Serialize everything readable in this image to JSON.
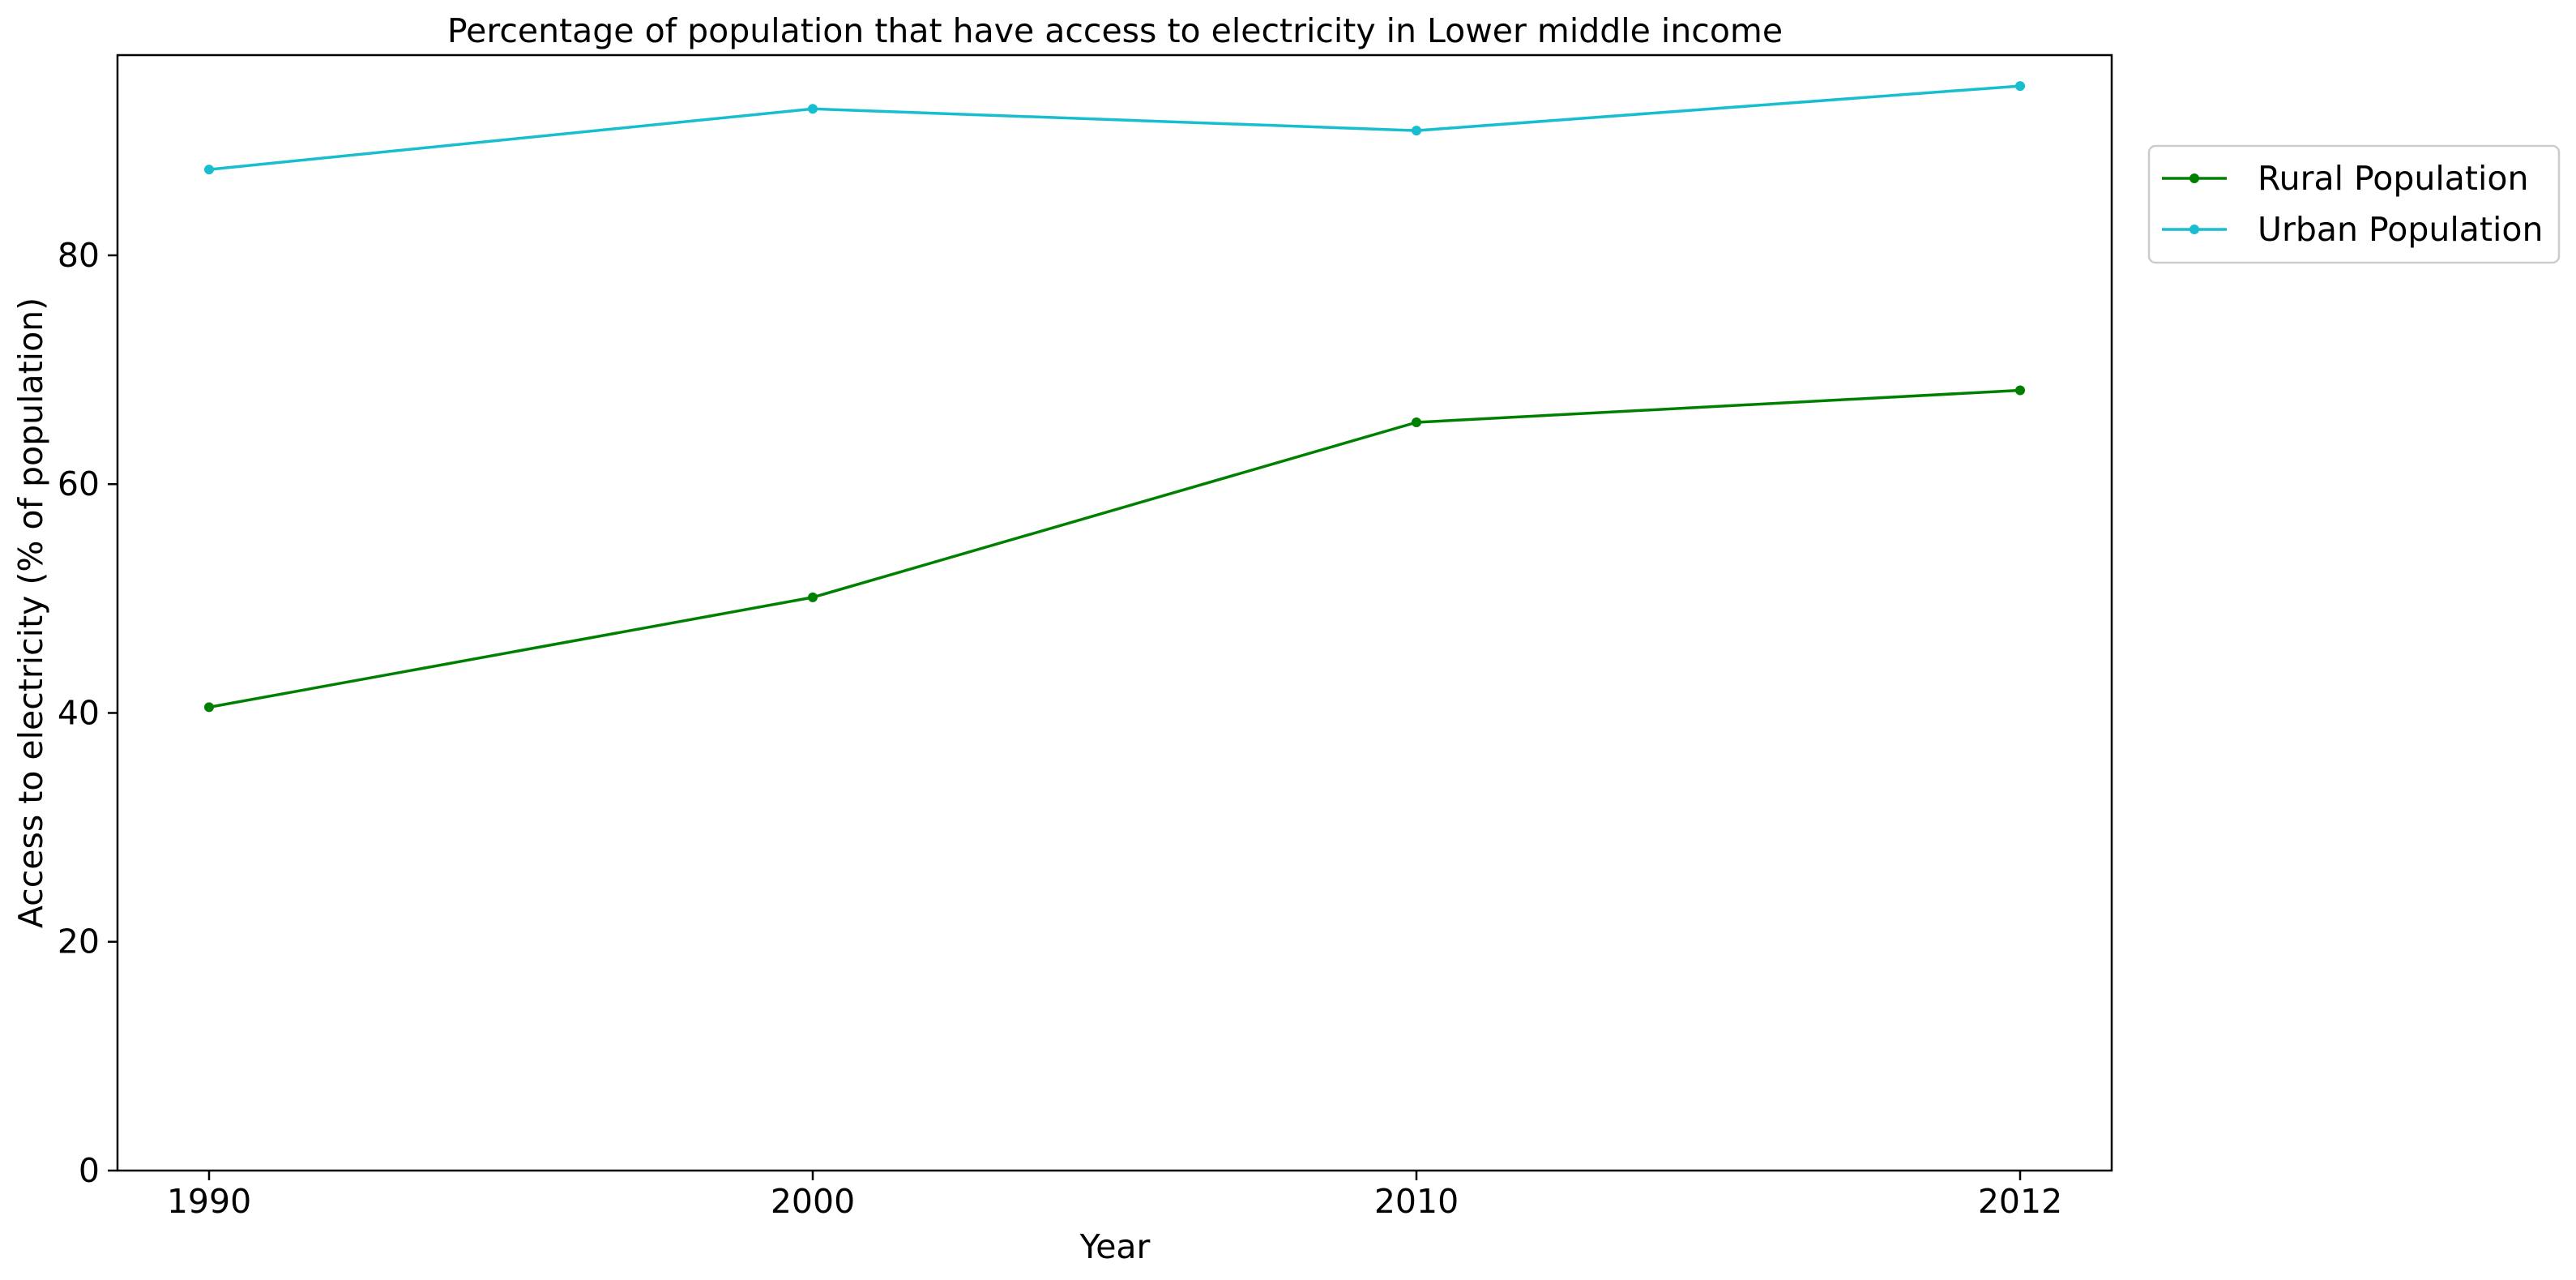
{
  "chart_data": {
    "type": "line",
    "title": "Percentage of population that have access to electricity in Lower middle income",
    "xlabel": "Year",
    "ylabel": "Access to electricity (% of population)",
    "x": [
      "1990",
      "2000",
      "2010",
      "2012"
    ],
    "y_ticks": [
      0,
      20,
      40,
      60,
      80
    ],
    "ylim": [
      0,
      97.5
    ],
    "grid": false,
    "legend_position": "outside top-right",
    "series": [
      {
        "name": "Rural Population",
        "color": "#008000",
        "values": [
          40.5,
          50.1,
          65.4,
          68.2
        ]
      },
      {
        "name": "Urban Population",
        "color": "#17becf",
        "values": [
          87.5,
          92.8,
          90.9,
          94.8
        ]
      }
    ]
  }
}
